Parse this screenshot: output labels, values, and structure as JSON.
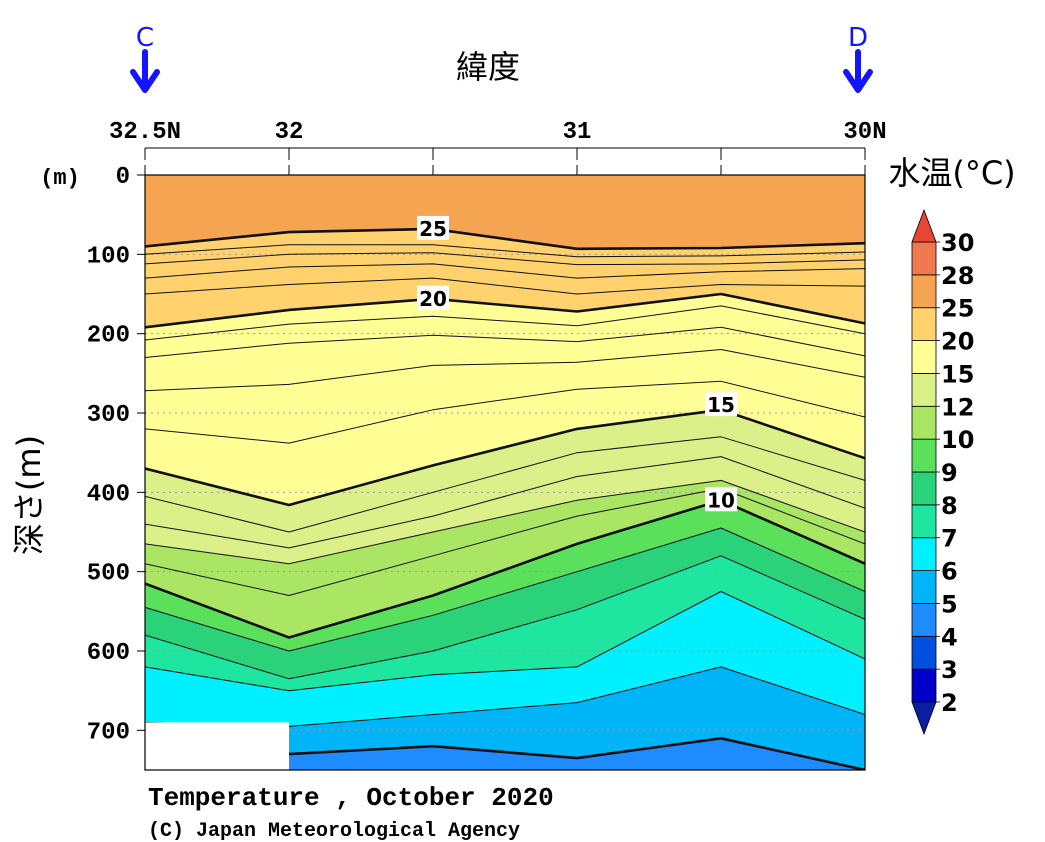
{
  "chart_data": {
    "type": "heatmap",
    "variable": "temperature",
    "title": "Temperature , October 2020",
    "credit": "(C) Japan Meteorological Agency",
    "xlabel": "緯度",
    "ylabel": "深さ(m)",
    "yunit": "(m)",
    "colorbar_label": "水温(°C)",
    "section_start_marker": "C",
    "section_end_marker": "D",
    "x_ticks": [
      {
        "value": 32.5,
        "label": "32.5N"
      },
      {
        "value": 32.0,
        "label": "32"
      },
      {
        "value": 31.0,
        "label": "31"
      },
      {
        "value": 30.0,
        "label": "30N"
      }
    ],
    "x_minor_ticks": [
      31.5,
      30.5
    ],
    "xlim": [
      32.5,
      30.0
    ],
    "ylim": [
      0,
      750
    ],
    "y_ticks": [
      {
        "value": 0,
        "label": "0"
      },
      {
        "value": 100,
        "label": "100"
      },
      {
        "value": 200,
        "label": "200"
      },
      {
        "value": 300,
        "label": "300"
      },
      {
        "value": 400,
        "label": "400"
      },
      {
        "value": 500,
        "label": "500"
      },
      {
        "value": 600,
        "label": "600"
      },
      {
        "value": 700,
        "label": "700"
      }
    ],
    "levels": [
      2,
      3,
      4,
      5,
      6,
      7,
      8,
      9,
      10,
      12,
      15,
      20,
      25,
      28,
      30
    ],
    "level_labels": [
      "2",
      "3",
      "4",
      "5",
      "6",
      "7",
      "8",
      "9",
      "10",
      "12",
      "15",
      "20",
      "25",
      "28",
      "30"
    ],
    "band_colors": [
      "#0a1fa0",
      "#0000c8",
      "#0050e0",
      "#1e8cff",
      "#00b4f8",
      "#00f0ff",
      "#1ee6a0",
      "#2ad27a",
      "#5ae05a",
      "#aae664",
      "#dcf08a",
      "#ffff96",
      "#ffd26e",
      "#f5a551",
      "#f07850",
      "#e64632"
    ],
    "latitudes": [
      32.5,
      32.0,
      31.5,
      31.0,
      30.5,
      30.0
    ],
    "isotherm_depths": [
      {
        "temp": 28,
        "depths": [
          null,
          null,
          null,
          null,
          null,
          null
        ]
      },
      {
        "temp": 25,
        "depths": [
          90,
          72,
          68,
          93,
          92,
          86
        ]
      },
      {
        "temp": 24,
        "depths": [
          100,
          88,
          88,
          103,
          102,
          97
        ]
      },
      {
        "temp": 23,
        "depths": [
          112,
          100,
          98,
          113,
          112,
          107
        ]
      },
      {
        "temp": 22,
        "depths": [
          130,
          116,
          112,
          130,
          122,
          118
        ]
      },
      {
        "temp": 21,
        "depths": [
          150,
          138,
          130,
          150,
          138,
          140
        ]
      },
      {
        "temp": 20,
        "depths": [
          192,
          170,
          156,
          172,
          150,
          187
        ]
      },
      {
        "temp": 19,
        "depths": [
          208,
          188,
          178,
          190,
          165,
          200
        ]
      },
      {
        "temp": 18,
        "depths": [
          230,
          212,
          202,
          210,
          192,
          228
        ]
      },
      {
        "temp": 17,
        "depths": [
          272,
          264,
          240,
          236,
          220,
          255
        ]
      },
      {
        "temp": 16,
        "depths": [
          320,
          338,
          296,
          270,
          260,
          305
        ]
      },
      {
        "temp": 15,
        "depths": [
          370,
          416,
          366,
          320,
          296,
          357
        ]
      },
      {
        "temp": 14,
        "depths": [
          405,
          450,
          400,
          350,
          330,
          385
        ]
      },
      {
        "temp": 13,
        "depths": [
          440,
          470,
          430,
          380,
          355,
          420
        ]
      },
      {
        "temp": 12,
        "depths": [
          465,
          490,
          450,
          410,
          385,
          450
        ]
      },
      {
        "temp": 11,
        "depths": [
          490,
          530,
          480,
          430,
          395,
          465
        ]
      },
      {
        "temp": 10,
        "depths": [
          515,
          583,
          530,
          465,
          410,
          490
        ]
      },
      {
        "temp": 9,
        "depths": [
          545,
          600,
          555,
          500,
          445,
          525
        ]
      },
      {
        "temp": 8,
        "depths": [
          580,
          635,
          600,
          548,
          480,
          560
        ]
      },
      {
        "temp": 7,
        "depths": [
          620,
          650,
          630,
          620,
          525,
          610
        ]
      },
      {
        "temp": 6,
        "depths": [
          690,
          695,
          680,
          665,
          620,
          680
        ]
      },
      {
        "temp": 5,
        "depths": [
          null,
          730,
          720,
          735,
          710,
          750
        ]
      },
      {
        "temp": 4,
        "depths": [
          null,
          null,
          null,
          null,
          null,
          null
        ]
      }
    ],
    "contour_labels": [
      {
        "text": "25",
        "lat": 31.5,
        "depth": 68
      },
      {
        "text": "20",
        "lat": 31.5,
        "depth": 156
      },
      {
        "text": "15",
        "lat": 30.5,
        "depth": 290
      },
      {
        "text": "10",
        "lat": 30.5,
        "depth": 410
      }
    ],
    "no_data_region": {
      "lat_from": 32.5,
      "lat_to": 32.0,
      "depth_from": 690,
      "depth_to": 750
    },
    "grid": "dotted horizontal",
    "legend": "right"
  }
}
